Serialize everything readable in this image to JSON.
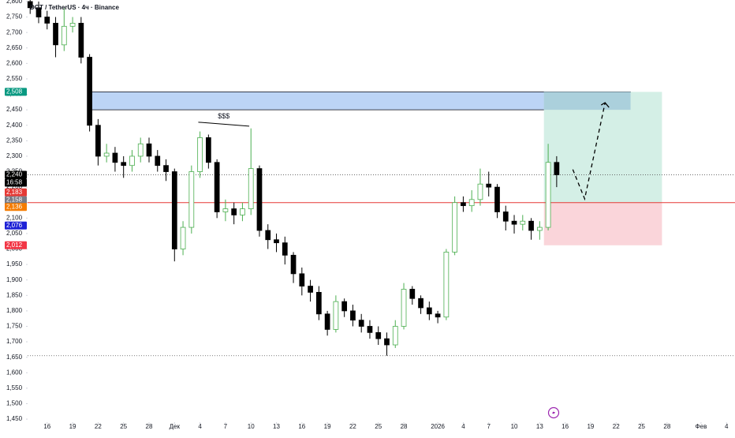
{
  "chart_data": {
    "type": "candlestick",
    "title": "DOT / TetherUS · 4ч · Binance",
    "x": [
      -2,
      -1,
      0,
      1,
      2,
      3,
      4,
      5,
      6,
      7,
      8,
      9,
      10,
      11,
      12,
      13,
      14,
      15,
      16,
      17,
      18,
      19,
      20,
      21,
      22,
      23,
      24,
      25,
      26,
      27,
      28,
      29,
      30,
      31,
      32,
      33,
      34,
      35,
      36,
      37,
      38,
      39,
      40,
      41,
      42,
      43,
      44,
      45,
      46,
      47,
      48,
      49,
      50,
      51,
      52,
      53,
      54,
      55,
      56,
      57,
      58,
      59,
      60
    ],
    "open": [
      2800,
      2780,
      2750,
      2730,
      2660,
      2720,
      2730,
      2620,
      2400,
      2300,
      2310,
      2280,
      2270,
      2300,
      2340,
      2300,
      2270,
      2250,
      2000,
      2070,
      2250,
      2360,
      2280,
      2120,
      2130,
      2110,
      2130,
      2260,
      2060,
      2030,
      2020,
      1980,
      1920,
      1880,
      1860,
      1790,
      1740,
      1830,
      1800,
      1770,
      1750,
      1730,
      1710,
      1690,
      1750,
      1870,
      1840,
      1810,
      1790,
      1780,
      1990,
      2150,
      2140,
      2160,
      2210,
      2200,
      2120,
      2090,
      2080,
      2090,
      2060,
      2070,
      2280
    ],
    "high": [
      2810,
      2800,
      2770,
      2750,
      2780,
      2750,
      2750,
      2630,
      2420,
      2340,
      2330,
      2300,
      2320,
      2360,
      2360,
      2320,
      2290,
      2260,
      2090,
      2270,
      2380,
      2370,
      2290,
      2160,
      2150,
      2150,
      2390,
      2270,
      2080,
      2050,
      2040,
      1990,
      1940,
      1900,
      1880,
      1800,
      1850,
      1840,
      1820,
      1790,
      1770,
      1750,
      1730,
      1770,
      1890,
      1880,
      1850,
      1830,
      1800,
      2000,
      2170,
      2170,
      2190,
      2260,
      2250,
      2210,
      2140,
      2110,
      2110,
      2100,
      2090,
      2340,
      2300
    ],
    "low": [
      2760,
      2730,
      2710,
      2620,
      2640,
      2700,
      2600,
      2380,
      2270,
      2280,
      2250,
      2230,
      2250,
      2280,
      2280,
      2250,
      2220,
      1960,
      1980,
      2050,
      2230,
      2260,
      2100,
      2090,
      2080,
      2090,
      2110,
      2040,
      2000,
      1990,
      1950,
      1890,
      1850,
      1830,
      1770,
      1720,
      1730,
      1780,
      1750,
      1730,
      1710,
      1690,
      1655,
      1680,
      1740,
      1820,
      1790,
      1770,
      1760,
      1770,
      1980,
      2120,
      2120,
      2140,
      2170,
      2100,
      2060,
      2050,
      2060,
      2030,
      2030,
      2060,
      2200
    ],
    "close": [
      2780,
      2750,
      2730,
      2660,
      2720,
      2730,
      2620,
      2400,
      2300,
      2310,
      2280,
      2270,
      2300,
      2340,
      2300,
      2270,
      2250,
      2000,
      2070,
      2250,
      2360,
      2280,
      2120,
      2130,
      2110,
      2130,
      2260,
      2060,
      2030,
      2020,
      1980,
      1920,
      1880,
      1860,
      1790,
      1740,
      1830,
      1800,
      1770,
      1750,
      1730,
      1710,
      1690,
      1750,
      1870,
      1840,
      1810,
      1790,
      1780,
      1990,
      2150,
      2140,
      2160,
      2210,
      2200,
      2120,
      2090,
      2080,
      2090,
      2060,
      2070,
      2280,
      2240
    ],
    "up_color": "#4caf50",
    "down_color": "#000000",
    "xlim": [
      -2.3,
      81
    ],
    "ylim": [
      1440,
      2805
    ],
    "xticks": [
      {
        "value": 0,
        "label": "16"
      },
      {
        "value": 3,
        "label": "19"
      },
      {
        "value": 6,
        "label": "22"
      },
      {
        "value": 9,
        "label": "25"
      },
      {
        "value": 12,
        "label": "28"
      },
      {
        "value": 15,
        "label": "Дек"
      },
      {
        "value": 18,
        "label": "4"
      },
      {
        "value": 21,
        "label": "7"
      },
      {
        "value": 24,
        "label": "10"
      },
      {
        "value": 27,
        "label": "13"
      },
      {
        "value": 30,
        "label": "16"
      },
      {
        "value": 33,
        "label": "19"
      },
      {
        "value": 36,
        "label": "22"
      },
      {
        "value": 39,
        "label": "25"
      },
      {
        "value": 42,
        "label": "28"
      },
      {
        "value": 46,
        "label": "2026"
      },
      {
        "value": 49,
        "label": "4"
      },
      {
        "value": 52,
        "label": "7"
      },
      {
        "value": 55,
        "label": "10"
      },
      {
        "value": 58,
        "label": "13"
      },
      {
        "value": 61,
        "label": "16"
      },
      {
        "value": 64,
        "label": "19"
      },
      {
        "value": 67,
        "label": "22"
      },
      {
        "value": 70,
        "label": "25"
      },
      {
        "value": 73,
        "label": "28"
      },
      {
        "value": 77,
        "label": "Фев"
      },
      {
        "value": 80,
        "label": "4"
      }
    ],
    "yticks": [
      {
        "value": 2800,
        "label": "2,800"
      },
      {
        "value": 2750,
        "label": "2,750"
      },
      {
        "value": 2700,
        "label": "2,700"
      },
      {
        "value": 2650,
        "label": "2,650"
      },
      {
        "value": 2600,
        "label": "2,600"
      },
      {
        "value": 2550,
        "label": "2,550"
      },
      {
        "value": 2500,
        "label": "2,500"
      },
      {
        "value": 2450,
        "label": "2,450"
      },
      {
        "value": 2400,
        "label": "2,400"
      },
      {
        "value": 2350,
        "label": "2,350"
      },
      {
        "value": 2300,
        "label": "2,300"
      },
      {
        "value": 2250,
        "label": "2,250"
      },
      {
        "value": 2200,
        "label": "2,200"
      },
      {
        "value": 2150,
        "label": "2,150"
      },
      {
        "value": 2100,
        "label": "2,100"
      },
      {
        "value": 2050,
        "label": "2,050"
      },
      {
        "value": 2000,
        "label": "2,000"
      },
      {
        "value": 1950,
        "label": "1,950"
      },
      {
        "value": 1900,
        "label": "1,900"
      },
      {
        "value": 1850,
        "label": "1,850"
      },
      {
        "value": 1800,
        "label": "1,800"
      },
      {
        "value": 1750,
        "label": "1,750"
      },
      {
        "value": 1700,
        "label": "1,700"
      },
      {
        "value": 1650,
        "label": "1,650"
      },
      {
        "value": 1600,
        "label": "1,600"
      },
      {
        "value": 1550,
        "label": "1,550"
      },
      {
        "value": 1500,
        "label": "1,500"
      },
      {
        "value": 1450,
        "label": "1,450"
      }
    ],
    "zones": [
      {
        "xlim": [
          5.1,
          68.7
        ],
        "ylim": [
          2450,
          2508
        ],
        "color": "#bcd4f6"
      },
      {
        "xlim": [
          58.5,
          72.4
        ],
        "ylim": [
          2150,
          2508
        ],
        "color": "#d4efe6"
      },
      {
        "xlim": [
          58.5,
          72.4
        ],
        "ylim": [
          2012,
          2150
        ],
        "color": "#fad5da"
      }
    ],
    "hlines": [
      {
        "value": 2240,
        "color": "#555555",
        "dash": "1,2"
      },
      {
        "value": 2150,
        "color": "#e53935",
        "dash": "none"
      },
      {
        "value": 1655,
        "color": "#555555",
        "dash": "1,2"
      }
    ],
    "projection": {
      "x": [
        61.9,
        63.3,
        65.7
      ],
      "y": [
        2257,
        2162,
        2473
      ]
    },
    "annotation": {
      "text": "$$$",
      "x": [
        17.8,
        23.8
      ],
      "y": [
        2410,
        2397
      ]
    },
    "price_labels": [
      {
        "value": 2508,
        "label": "2,508",
        "color": "#089981"
      },
      {
        "value": 2240,
        "label": "2,240",
        "color": "#000000",
        "sub": "16:58"
      },
      {
        "value": 2183,
        "label": "2,183",
        "color": "#e53935"
      },
      {
        "value": 2158,
        "label": "2,158",
        "color": "#787b86"
      },
      {
        "value": 2136,
        "label": "2,136",
        "color": "#f57c00"
      },
      {
        "value": 2076,
        "label": "2,076",
        "color": "#1e22d6"
      },
      {
        "value": 2012,
        "label": "2,012",
        "color": "#f23645"
      }
    ]
  }
}
